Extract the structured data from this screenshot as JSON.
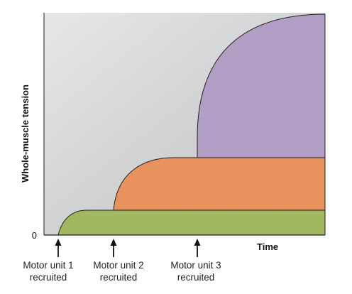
{
  "axes": {
    "y_title": "Whole-muscle tension",
    "x_title": "Time",
    "y_zero_label": "0"
  },
  "motor_units": [
    {
      "line1": "Motor unit 1",
      "line2": "recruited",
      "color": "#a1b861"
    },
    {
      "line1": "Motor unit 2",
      "line2": "recruited",
      "color": "#e8925d"
    },
    {
      "line1": "Motor unit 3",
      "line2": "recruited",
      "color": "#b29dc4"
    }
  ],
  "colors": {
    "background_gradient_start": "#e6e7e8",
    "background_gradient_end": "#bcbec0",
    "outline": "#231f20",
    "dashed_level": "#3a3a3a"
  }
}
